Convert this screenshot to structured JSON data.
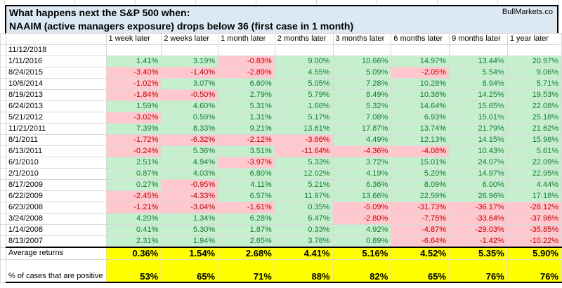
{
  "brand": "BullMarkets.co",
  "title": {
    "line1": "What happens next the S&P 500 when:",
    "line2": "NAAIM (active managers exposure) drops below 36 (first case in 1 month)"
  },
  "columns": [
    "1 week later",
    "2 weeks later",
    "1 month later",
    "2 months later",
    "3 months later",
    "6 months later",
    "9 months later",
    "1 year later"
  ],
  "rows": [
    {
      "date": "11/12/2018",
      "values": [
        "",
        "",
        "",
        "",
        "",
        "",
        "",
        ""
      ]
    },
    {
      "date": "1/11/2016",
      "values": [
        "1.41%",
        "3.19%",
        "-0.83%",
        "9.00%",
        "10.66%",
        "14.97%",
        "13.44%",
        "20.97%"
      ]
    },
    {
      "date": "8/24/2015",
      "values": [
        "-3.40%",
        "-1.40%",
        "-2.89%",
        "4.55%",
        "5.09%",
        "-2.05%",
        "5.54%",
        "9.06%"
      ]
    },
    {
      "date": "10/6/2014",
      "values": [
        "-1.02%",
        "3.07%",
        "6.60%",
        "5.05%",
        "7.28%",
        "10.28%",
        "8.94%",
        "5.71%"
      ]
    },
    {
      "date": "8/19/2013",
      "values": [
        "-1.84%",
        "-0.50%",
        "2.79%",
        "5.79%",
        "8.49%",
        "10.38%",
        "14.25%",
        "19.53%"
      ]
    },
    {
      "date": "6/24/2013",
      "values": [
        "1.59%",
        "4.60%",
        "5.31%",
        "1.66%",
        "5.32%",
        "14.64%",
        "15.65%",
        "22.08%"
      ]
    },
    {
      "date": "5/21/2012",
      "values": [
        "-3.02%",
        "0.59%",
        "1.31%",
        "5.17%",
        "7.08%",
        "6.93%",
        "15.01%",
        "25.18%"
      ]
    },
    {
      "date": "11/21/2011",
      "values": [
        "7.39%",
        "8.33%",
        "9.21%",
        "13.61%",
        "17.87%",
        "13.74%",
        "21.79%",
        "21.62%"
      ]
    },
    {
      "date": "8/1/2011",
      "values": [
        "-1.72%",
        "-6.32%",
        "-2.12%",
        "-3.66%",
        "4.49%",
        "12.13%",
        "14.15%",
        "15.98%"
      ]
    },
    {
      "date": "6/13/2011",
      "values": [
        "-0.24%",
        "5.36%",
        "3.51%",
        "-11.64%",
        "-4.36%",
        "-4.08%",
        "10.43%",
        "5.61%"
      ]
    },
    {
      "date": "6/1/2010",
      "values": [
        "2.51%",
        "4.94%",
        "-3.97%",
        "5.33%",
        "3.72%",
        "15.01%",
        "24.07%",
        "22.09%"
      ]
    },
    {
      "date": "2/1/2010",
      "values": [
        "0.87%",
        "4.03%",
        "6.80%",
        "12.02%",
        "4.19%",
        "5.20%",
        "14.97%",
        "22.95%"
      ]
    },
    {
      "date": "8/17/2009",
      "values": [
        "0.27%",
        "-0.95%",
        "4.11%",
        "5.21%",
        "6.36%",
        "8.09%",
        "6.00%",
        "4.44%"
      ]
    },
    {
      "date": "6/22/2009",
      "values": [
        "-2.45%",
        "-4.33%",
        "6.57%",
        "11.97%",
        "13.66%",
        "22.59%",
        "26.96%",
        "17.18%"
      ]
    },
    {
      "date": "6/23/2008",
      "values": [
        "-1.21%",
        "-3.04%",
        "-1.61%",
        "0.35%",
        "-5.09%",
        "-31.73%",
        "-36.17%",
        "-28.12%"
      ]
    },
    {
      "date": "3/24/2008",
      "values": [
        "4.20%",
        "1.34%",
        "6.28%",
        "6.47%",
        "-2.80%",
        "-7.75%",
        "-33.64%",
        "-37.96%"
      ]
    },
    {
      "date": "1/14/2008",
      "values": [
        "0.41%",
        "5.30%",
        "1.87%",
        "0.33%",
        "4.92%",
        "-4.87%",
        "-29.03%",
        "-35.85%"
      ]
    },
    {
      "date": "8/13/2007",
      "values": [
        "2.31%",
        "1.94%",
        "2.65%",
        "3.78%",
        "0.89%",
        "-6.64%",
        "-1.42%",
        "-10.22%"
      ]
    }
  ],
  "summary": {
    "average_label": "Average returns",
    "averages": [
      "0.36%",
      "1.54%",
      "2.68%",
      "4.41%",
      "5.16%",
      "4.52%",
      "5.35%",
      "5.90%"
    ],
    "positive_label": "% of cases that are positive",
    "positives": [
      "53%",
      "65%",
      "71%",
      "88%",
      "82%",
      "65%",
      "76%",
      "76%"
    ]
  },
  "colors": {
    "title_background": "#dce9f4",
    "positive_fill": "#c6efce",
    "positive_text": "#147c35",
    "negative_fill": "#ffc7ce",
    "negative_text": "#c00000",
    "summary_highlight": "#ffff00",
    "gridline": "#d9d9d9"
  }
}
